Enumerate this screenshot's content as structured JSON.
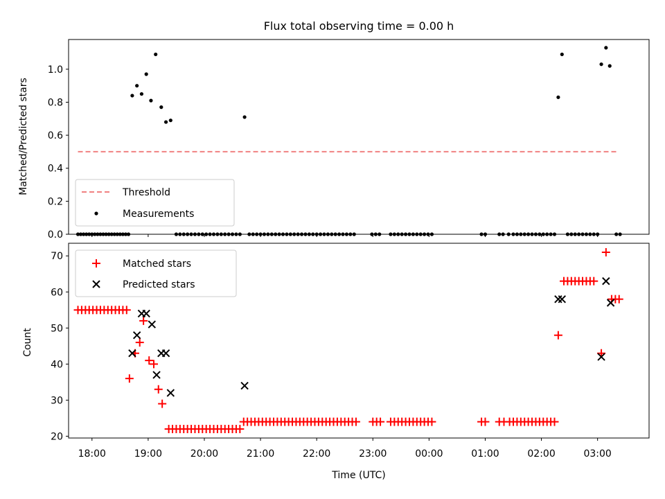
{
  "title": "Flux total observing time = 0.00 h",
  "colors": {
    "threshold": "#f08080",
    "measurement": "#000000",
    "matched": "#ff0000",
    "predicted": "#000000"
  },
  "chart_data": [
    {
      "type": "scatter",
      "ylabel": "Matched/Predicted stars",
      "xlabel": "",
      "xlim": [
        "17:35",
        "03:55"
      ],
      "ylim": [
        0,
        1.18
      ],
      "yticks": [
        "0.0",
        "0.2",
        "0.4",
        "0.6",
        "0.8",
        "1.0"
      ],
      "legend": {
        "position": "lower-left",
        "entries": [
          "Threshold",
          "Measurements"
        ]
      },
      "threshold": {
        "name": "Threshold",
        "style": "dashed",
        "value": 0.5,
        "x": [
          "17:45",
          "03:20"
        ]
      },
      "measurements": {
        "name": "Measurements",
        "points": [
          [
            "17:45",
            0
          ],
          [
            "17:48",
            0
          ],
          [
            "17:51",
            0
          ],
          [
            "17:54",
            0
          ],
          [
            "17:57",
            0
          ],
          [
            "18:00",
            0
          ],
          [
            "18:03",
            0
          ],
          [
            "18:06",
            0
          ],
          [
            "18:09",
            0
          ],
          [
            "18:12",
            0
          ],
          [
            "18:15",
            0
          ],
          [
            "18:18",
            0
          ],
          [
            "18:21",
            0
          ],
          [
            "18:24",
            0
          ],
          [
            "18:27",
            0
          ],
          [
            "18:30",
            0
          ],
          [
            "18:33",
            0
          ],
          [
            "18:36",
            0
          ],
          [
            "18:39",
            0
          ],
          [
            "18:43",
            0.84
          ],
          [
            "18:48",
            0.9
          ],
          [
            "18:53",
            0.85
          ],
          [
            "18:58",
            0.97
          ],
          [
            "19:03",
            0.81
          ],
          [
            "19:08",
            1.09
          ],
          [
            "19:14",
            0.77
          ],
          [
            "19:19",
            0.68
          ],
          [
            "19:24",
            0.69
          ],
          [
            "19:30",
            0
          ],
          [
            "19:34",
            0
          ],
          [
            "19:38",
            0
          ],
          [
            "19:42",
            0
          ],
          [
            "19:46",
            0
          ],
          [
            "19:50",
            0
          ],
          [
            "19:54",
            0
          ],
          [
            "19:58",
            0
          ],
          [
            "20:02",
            0
          ],
          [
            "20:06",
            0
          ],
          [
            "20:10",
            0
          ],
          [
            "20:14",
            0
          ],
          [
            "20:18",
            0
          ],
          [
            "20:22",
            0
          ],
          [
            "20:26",
            0
          ],
          [
            "20:30",
            0
          ],
          [
            "20:34",
            0
          ],
          [
            "20:38",
            0
          ],
          [
            "20:43",
            0.71
          ],
          [
            "20:48",
            0
          ],
          [
            "20:52",
            0
          ],
          [
            "20:56",
            0
          ],
          [
            "21:00",
            0
          ],
          [
            "21:04",
            0
          ],
          [
            "21:08",
            0
          ],
          [
            "21:12",
            0
          ],
          [
            "21:16",
            0
          ],
          [
            "21:20",
            0
          ],
          [
            "21:24",
            0
          ],
          [
            "21:28",
            0
          ],
          [
            "21:32",
            0
          ],
          [
            "21:36",
            0
          ],
          [
            "21:40",
            0
          ],
          [
            "21:44",
            0
          ],
          [
            "21:48",
            0
          ],
          [
            "21:52",
            0
          ],
          [
            "21:56",
            0
          ],
          [
            "22:00",
            0
          ],
          [
            "22:04",
            0
          ],
          [
            "22:08",
            0
          ],
          [
            "22:12",
            0
          ],
          [
            "22:16",
            0
          ],
          [
            "22:20",
            0
          ],
          [
            "22:24",
            0
          ],
          [
            "22:28",
            0
          ],
          [
            "22:32",
            0
          ],
          [
            "22:36",
            0
          ],
          [
            "22:40",
            0
          ],
          [
            "22:59",
            0
          ],
          [
            "23:03",
            0
          ],
          [
            "23:07",
            0
          ],
          [
            "23:19",
            0
          ],
          [
            "23:23",
            0
          ],
          [
            "23:27",
            0
          ],
          [
            "23:31",
            0
          ],
          [
            "23:35",
            0
          ],
          [
            "23:39",
            0
          ],
          [
            "23:43",
            0
          ],
          [
            "23:47",
            0
          ],
          [
            "23:51",
            0
          ],
          [
            "23:55",
            0
          ],
          [
            "23:59",
            0
          ],
          [
            "00:03",
            0
          ],
          [
            "00:56",
            0
          ],
          [
            "01:00",
            0
          ],
          [
            "01:15",
            0
          ],
          [
            "01:19",
            0
          ],
          [
            "01:25",
            0
          ],
          [
            "01:30",
            0
          ],
          [
            "01:34",
            0
          ],
          [
            "01:38",
            0
          ],
          [
            "01:42",
            0
          ],
          [
            "01:46",
            0
          ],
          [
            "01:50",
            0
          ],
          [
            "01:54",
            0
          ],
          [
            "01:58",
            0
          ],
          [
            "02:02",
            0
          ],
          [
            "02:06",
            0
          ],
          [
            "02:10",
            0
          ],
          [
            "02:14",
            0
          ],
          [
            "02:18",
            0.83
          ],
          [
            "02:22",
            1.09
          ],
          [
            "02:28",
            0
          ],
          [
            "02:32",
            0
          ],
          [
            "02:36",
            0
          ],
          [
            "02:40",
            0
          ],
          [
            "02:44",
            0
          ],
          [
            "02:48",
            0
          ],
          [
            "02:52",
            0
          ],
          [
            "02:56",
            0
          ],
          [
            "03:00",
            0
          ],
          [
            "03:04",
            1.03
          ],
          [
            "03:09",
            1.13
          ],
          [
            "03:13",
            1.02
          ],
          [
            "03:20",
            0
          ],
          [
            "03:24",
            0
          ]
        ]
      }
    },
    {
      "type": "scatter",
      "ylabel": "Count",
      "xlabel": "Time (UTC)",
      "xlim": [
        "17:35",
        "03:55"
      ],
      "ylim": [
        19.5,
        73.5
      ],
      "yticks": [
        "20",
        "30",
        "40",
        "50",
        "60",
        "70"
      ],
      "xticks": [
        "18:00",
        "19:00",
        "20:00",
        "21:00",
        "22:00",
        "23:00",
        "00:00",
        "01:00",
        "02:00",
        "03:00"
      ],
      "legend": {
        "position": "upper-left",
        "entries": [
          "Matched stars",
          "Predicted stars"
        ]
      },
      "series": [
        {
          "name": "Matched stars",
          "marker": "plus",
          "points": [
            [
              "17:45",
              55
            ],
            [
              "17:49",
              55
            ],
            [
              "17:53",
              55
            ],
            [
              "17:57",
              55
            ],
            [
              "18:01",
              55
            ],
            [
              "18:05",
              55
            ],
            [
              "18:09",
              55
            ],
            [
              "18:13",
              55
            ],
            [
              "18:17",
              55
            ],
            [
              "18:21",
              55
            ],
            [
              "18:25",
              55
            ],
            [
              "18:29",
              55
            ],
            [
              "18:33",
              55
            ],
            [
              "18:37",
              55
            ],
            [
              "18:40",
              36
            ],
            [
              "18:46",
              43
            ],
            [
              "18:51",
              46
            ],
            [
              "18:55",
              52
            ],
            [
              "19:01",
              41
            ],
            [
              "19:06",
              40
            ],
            [
              "19:11",
              33
            ],
            [
              "19:15",
              29
            ],
            [
              "19:22",
              22
            ],
            [
              "19:26",
              22
            ],
            [
              "19:30",
              22
            ],
            [
              "19:34",
              22
            ],
            [
              "19:38",
              22
            ],
            [
              "19:42",
              22
            ],
            [
              "19:46",
              22
            ],
            [
              "19:50",
              22
            ],
            [
              "19:54",
              22
            ],
            [
              "19:58",
              22
            ],
            [
              "20:02",
              22
            ],
            [
              "20:06",
              22
            ],
            [
              "20:10",
              22
            ],
            [
              "20:14",
              22
            ],
            [
              "20:18",
              22
            ],
            [
              "20:22",
              22
            ],
            [
              "20:26",
              22
            ],
            [
              "20:30",
              22
            ],
            [
              "20:34",
              22
            ],
            [
              "20:38",
              22
            ],
            [
              "20:42",
              24
            ],
            [
              "20:46",
              24
            ],
            [
              "20:50",
              24
            ],
            [
              "20:54",
              24
            ],
            [
              "20:58",
              24
            ],
            [
              "21:02",
              24
            ],
            [
              "21:06",
              24
            ],
            [
              "21:10",
              24
            ],
            [
              "21:14",
              24
            ],
            [
              "21:18",
              24
            ],
            [
              "21:22",
              24
            ],
            [
              "21:26",
              24
            ],
            [
              "21:30",
              24
            ],
            [
              "21:34",
              24
            ],
            [
              "21:38",
              24
            ],
            [
              "21:42",
              24
            ],
            [
              "21:46",
              24
            ],
            [
              "21:50",
              24
            ],
            [
              "21:54",
              24
            ],
            [
              "21:58",
              24
            ],
            [
              "22:02",
              24
            ],
            [
              "22:06",
              24
            ],
            [
              "22:10",
              24
            ],
            [
              "22:14",
              24
            ],
            [
              "22:18",
              24
            ],
            [
              "22:22",
              24
            ],
            [
              "22:26",
              24
            ],
            [
              "22:30",
              24
            ],
            [
              "22:34",
              24
            ],
            [
              "22:38",
              24
            ],
            [
              "22:42",
              24
            ],
            [
              "23:00",
              24
            ],
            [
              "23:04",
              24
            ],
            [
              "23:08",
              24
            ],
            [
              "23:19",
              24
            ],
            [
              "23:23",
              24
            ],
            [
              "23:27",
              24
            ],
            [
              "23:31",
              24
            ],
            [
              "23:35",
              24
            ],
            [
              "23:39",
              24
            ],
            [
              "23:43",
              24
            ],
            [
              "23:47",
              24
            ],
            [
              "23:51",
              24
            ],
            [
              "23:55",
              24
            ],
            [
              "23:59",
              24
            ],
            [
              "00:03",
              24
            ],
            [
              "00:56",
              24
            ],
            [
              "01:00",
              24
            ],
            [
              "01:15",
              24
            ],
            [
              "01:20",
              24
            ],
            [
              "01:26",
              24
            ],
            [
              "01:30",
              24
            ],
            [
              "01:34",
              24
            ],
            [
              "01:38",
              24
            ],
            [
              "01:42",
              24
            ],
            [
              "01:46",
              24
            ],
            [
              "01:50",
              24
            ],
            [
              "01:54",
              24
            ],
            [
              "01:58",
              24
            ],
            [
              "02:02",
              24
            ],
            [
              "02:06",
              24
            ],
            [
              "02:10",
              24
            ],
            [
              "02:14",
              24
            ],
            [
              "02:18",
              48
            ],
            [
              "02:24",
              63
            ],
            [
              "02:28",
              63
            ],
            [
              "02:32",
              63
            ],
            [
              "02:36",
              63
            ],
            [
              "02:40",
              63
            ],
            [
              "02:44",
              63
            ],
            [
              "02:48",
              63
            ],
            [
              "02:52",
              63
            ],
            [
              "02:56",
              63
            ],
            [
              "03:04",
              43
            ],
            [
              "03:09",
              71
            ],
            [
              "03:15",
              58
            ],
            [
              "03:19",
              58
            ],
            [
              "03:23",
              58
            ]
          ]
        },
        {
          "name": "Predicted stars",
          "marker": "x",
          "points": [
            [
              "18:43",
              43
            ],
            [
              "18:48",
              48
            ],
            [
              "18:53",
              54
            ],
            [
              "18:58",
              54
            ],
            [
              "19:04",
              51
            ],
            [
              "19:09",
              37
            ],
            [
              "19:14",
              43
            ],
            [
              "19:19",
              43
            ],
            [
              "19:24",
              32
            ],
            [
              "20:43",
              34
            ],
            [
              "02:18",
              58
            ],
            [
              "02:22",
              58
            ],
            [
              "03:04",
              42
            ],
            [
              "03:09",
              63
            ],
            [
              "03:14",
              57
            ]
          ]
        }
      ]
    }
  ]
}
